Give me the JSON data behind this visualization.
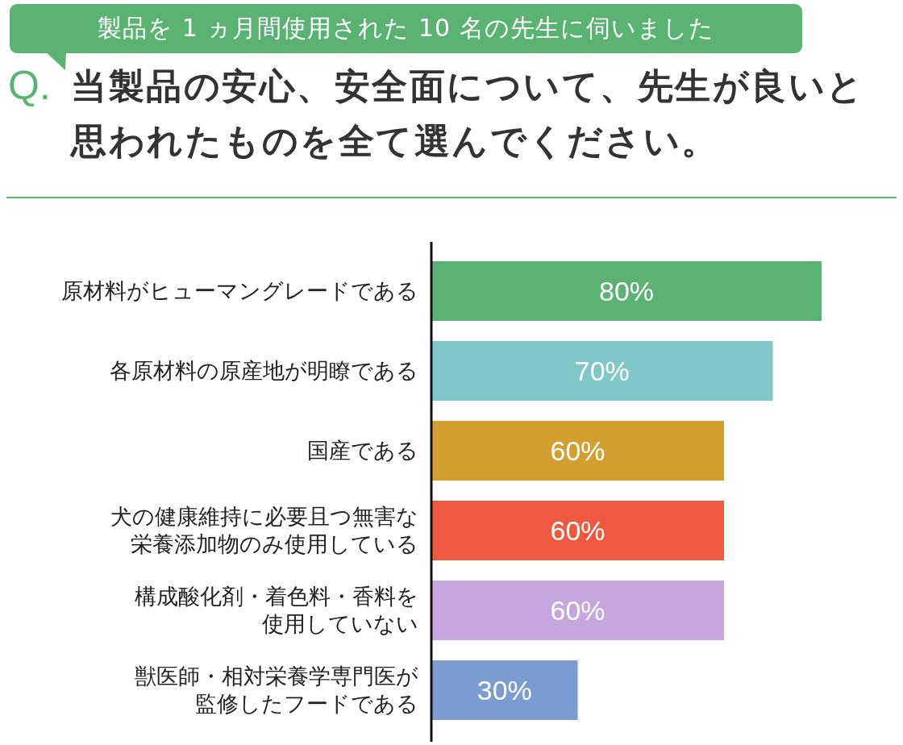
{
  "chart_data": {
    "type": "bar",
    "orientation": "horizontal",
    "subtitle": "製品を 1 ヵ月間使用された 10 名の先生に伺いました",
    "title": "当製品の安心、安全面について、先生が良いと思われたものを全て選んでください。",
    "annotations": [
      "Q."
    ],
    "categories": [
      "原材料がヒューマングレードである",
      "各原材料の原産地が明瞭である",
      "国産である",
      "犬の健康維持に必要且つ無害な栄養添加物のみ使用している",
      "構成酸化剤・着色料・香料を使用していない",
      "獣医師・相対栄養学専門医が監修したフードである"
    ],
    "values": [
      80,
      70,
      60,
      60,
      60,
      30
    ],
    "colors": [
      "#5bb373",
      "#81c7ca",
      "#d39f32",
      "#ee5a40",
      "#c7a6e0",
      "#7b9ccf"
    ],
    "value_labels": [
      "80%",
      "70%",
      "60%",
      "60%",
      "60%",
      "30%"
    ]
  }
}
